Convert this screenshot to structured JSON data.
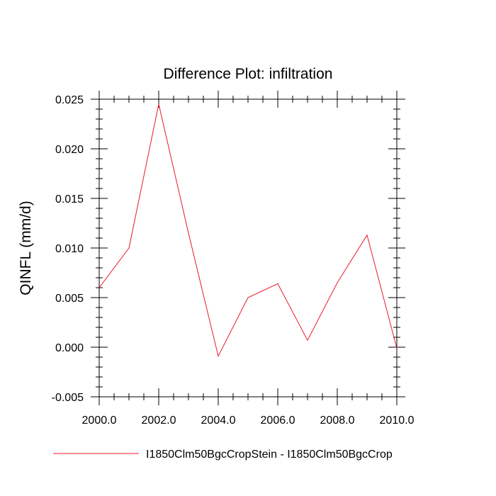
{
  "chart_data": {
    "type": "line",
    "title": "Difference Plot: infiltration",
    "xlabel": "",
    "ylabel": "QINFL  (mm/d)",
    "xlim": [
      2000,
      2010
    ],
    "ylim": [
      -0.005,
      0.025
    ],
    "x_ticks": [
      2000,
      2002,
      2004,
      2006,
      2008,
      2010
    ],
    "x_tick_labels": [
      "2000.0",
      "2002.0",
      "2004.0",
      "2006.0",
      "2008.0",
      "2010.0"
    ],
    "y_ticks": [
      -0.005,
      0,
      0.005,
      0.01,
      0.015,
      0.02,
      0.025
    ],
    "y_tick_labels": [
      "-0.005",
      "0.000",
      "0.005",
      "0.010",
      "0.015",
      "0.020",
      "0.025"
    ],
    "grid": false,
    "legend_position": "bottom",
    "series": [
      {
        "name": "I1850Clm50BgcCropStein - I1850Clm50BgcCrop",
        "color": "#e8192c",
        "x": [
          2000,
          2001,
          2002,
          2003,
          2004,
          2005,
          2006,
          2007,
          2008,
          2009,
          2010
        ],
        "y": [
          0.006,
          0.01,
          0.0245,
          0.0115,
          -0.0009,
          0.005,
          0.0064,
          0.0007,
          0.0065,
          0.0113,
          -0.0001
        ]
      }
    ]
  }
}
